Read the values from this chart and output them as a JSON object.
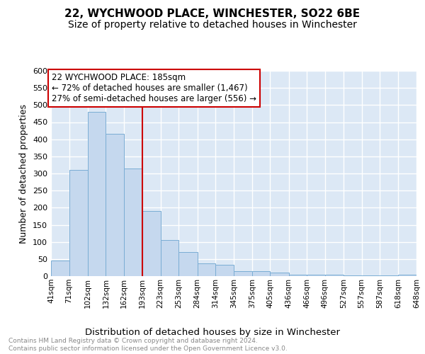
{
  "title": "22, WYCHWOOD PLACE, WINCHESTER, SO22 6BE",
  "subtitle": "Size of property relative to detached houses in Winchester",
  "xlabel": "Distribution of detached houses by size in Winchester",
  "ylabel": "Number of detached properties",
  "bar_values": [
    45,
    310,
    480,
    415,
    315,
    190,
    105,
    70,
    38,
    33,
    15,
    15,
    10,
    5,
    5,
    5,
    3,
    2,
    2,
    5
  ],
  "bin_edges": [
    41,
    71,
    102,
    132,
    162,
    193,
    223,
    253,
    284,
    314,
    345,
    375,
    405,
    436,
    466,
    496,
    527,
    557,
    587,
    618,
    648
  ],
  "bin_labels": [
    "41sqm",
    "71sqm",
    "102sqm",
    "132sqm",
    "162sqm",
    "193sqm",
    "223sqm",
    "253sqm",
    "284sqm",
    "314sqm",
    "345sqm",
    "375sqm",
    "405sqm",
    "436sqm",
    "466sqm",
    "496sqm",
    "527sqm",
    "557sqm",
    "587sqm",
    "618sqm",
    "648sqm"
  ],
  "bar_color": "#c5d8ee",
  "bar_edge_color": "#7aadd4",
  "annotation_text": "22 WYCHWOOD PLACE: 185sqm\n← 72% of detached houses are smaller (1,467)\n27% of semi-detached houses are larger (556) →",
  "annotation_box_color": "white",
  "annotation_box_edge_color": "#cc0000",
  "vline_color": "#cc0000",
  "vline_x": 193,
  "ylim": [
    0,
    600
  ],
  "yticks": [
    0,
    50,
    100,
    150,
    200,
    250,
    300,
    350,
    400,
    450,
    500,
    550,
    600
  ],
  "background_color": "#dce8f5",
  "grid_color": "white",
  "footer_text": "Contains HM Land Registry data © Crown copyright and database right 2024.\nContains public sector information licensed under the Open Government Licence v3.0.",
  "title_fontsize": 11,
  "subtitle_fontsize": 10,
  "xlabel_fontsize": 9.5,
  "ylabel_fontsize": 9
}
